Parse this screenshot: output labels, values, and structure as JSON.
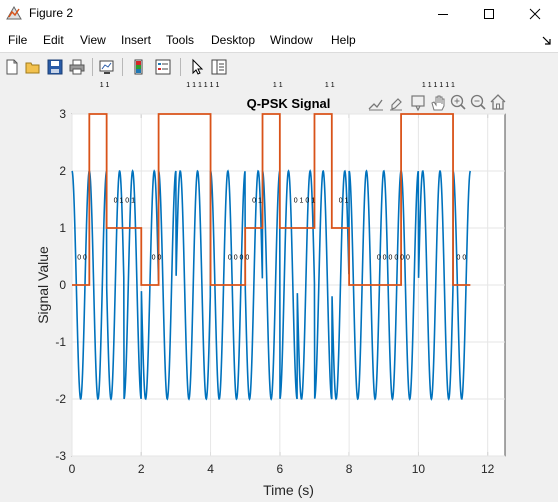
{
  "window": {
    "title": "Figure 2",
    "icons": {
      "app": "matlab-figure-icon",
      "minimize": "minimize-icon",
      "maximize": "maximize-icon",
      "close": "close-icon"
    }
  },
  "menubar": {
    "items": [
      "File",
      "Edit",
      "View",
      "Insert",
      "Tools",
      "Desktop",
      "Window",
      "Help"
    ],
    "dock_icon": "dock-arrow-icon"
  },
  "toolbar": {
    "buttons": [
      "new-figure-icon",
      "open-file-icon",
      "save-icon",
      "print-icon",
      "link-plot-icon",
      "insert-colorbar-icon",
      "insert-legend-icon",
      "pointer-icon",
      "property-inspector-icon"
    ]
  },
  "axes_toolbar": {
    "buttons": [
      "export-icon",
      "brush-icon",
      "data-tips-icon",
      "pan-icon",
      "zoom-in-icon",
      "zoom-out-icon",
      "home-icon"
    ]
  },
  "chart_data": {
    "type": "line",
    "title": "Q-PSK Signal",
    "xlabel": "Time (s)",
    "ylabel": "Signal Value",
    "xlim": [
      0,
      12.5
    ],
    "ylim": [
      -3,
      3
    ],
    "xticks": [
      0,
      2,
      4,
      6,
      8,
      10,
      12
    ],
    "yticks": [
      -3,
      -2,
      -1,
      0,
      1,
      2,
      3
    ],
    "grid": true,
    "series": [
      {
        "role": "qpsk-carrier",
        "color": "#0072BD",
        "x_range": [
          0,
          11.5
        ],
        "frequency_hz": 2,
        "phases_per_symbol": [
          0,
          0,
          1,
          2,
          1,
          0,
          3,
          3,
          0,
          0,
          1,
          0,
          2,
          1,
          2,
          1,
          0,
          0,
          0,
          0,
          3,
          3,
          0
        ],
        "offset": 0,
        "amplitude": 2
      },
      {
        "role": "symbol-steps",
        "color": "#D95319",
        "step_duration": 0.5,
        "values": [
          0,
          3,
          1,
          1,
          0,
          3,
          3,
          3,
          0,
          0,
          1,
          3,
          1,
          1,
          3,
          1,
          0,
          0,
          0,
          3,
          3,
          3,
          0
        ]
      }
    ],
    "annotations": {
      "bit_labels": [
        {
          "x": 0.15,
          "y": 0.5,
          "text": "0 0"
        },
        {
          "x": 1.2,
          "y": 1.5,
          "text": "0 1 0 1"
        },
        {
          "x": 2.3,
          "y": 0.5,
          "text": "0 0"
        },
        {
          "x": 4.5,
          "y": 0.5,
          "text": "0 0 0 0"
        },
        {
          "x": 5.2,
          "y": 1.5,
          "text": "0 1"
        },
        {
          "x": 6.4,
          "y": 1.5,
          "text": "0 1 0 1"
        },
        {
          "x": 7.7,
          "y": 1.5,
          "text": "0 1"
        },
        {
          "x": 8.8,
          "y": 0.5,
          "text": "0 0 0 0 0 0"
        },
        {
          "x": 11.1,
          "y": 0.5,
          "text": "0 0"
        }
      ],
      "top_labels": [
        {
          "x": 0.8,
          "text": "1 1"
        },
        {
          "x": 3.3,
          "text": "1 1  1 1  1 1"
        },
        {
          "x": 5.8,
          "text": "1 1"
        },
        {
          "x": 7.3,
          "text": "1 1"
        },
        {
          "x": 10.1,
          "text": "1 1  1 1 1 1"
        }
      ]
    }
  }
}
